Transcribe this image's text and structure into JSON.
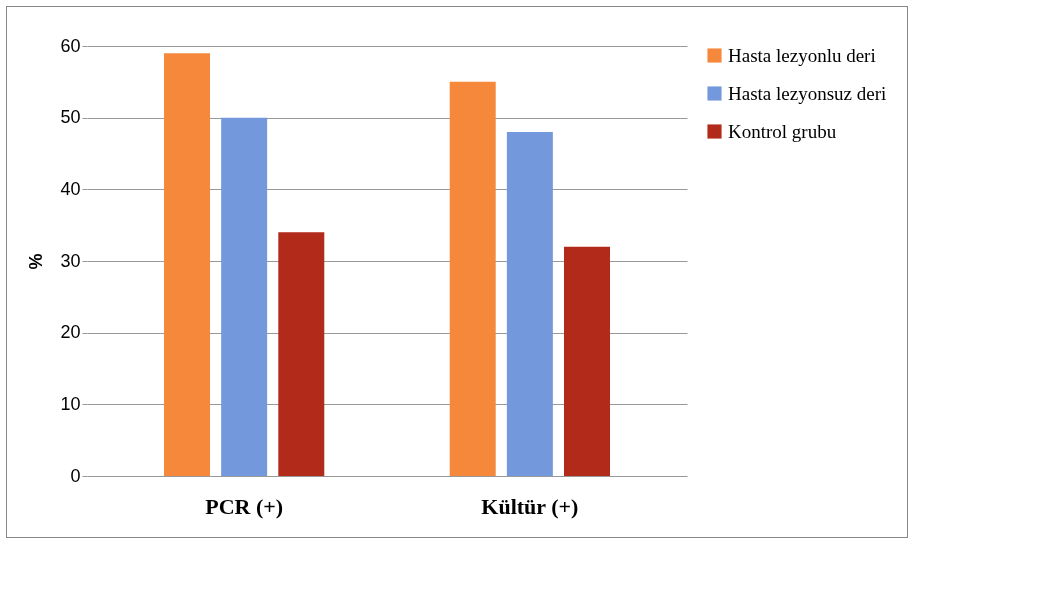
{
  "chart_data": {
    "type": "bar",
    "ylabel": "%",
    "categories": [
      "PCR (+)",
      "Kültür (+)"
    ],
    "series": [
      {
        "name": "Hasta lezyonlu deri",
        "color": "#f5883a",
        "values": [
          59,
          55
        ]
      },
      {
        "name": "Hasta lezyonsuz deri",
        "color": "#7399dc",
        "values": [
          50,
          48
        ]
      },
      {
        "name": "Kontrol grubu",
        "color": "#b22a1a",
        "values": [
          34,
          32
        ]
      }
    ],
    "ylim": [
      0,
      60
    ],
    "yticks": [
      0,
      10,
      20,
      30,
      40,
      50,
      60
    ],
    "grid": "y",
    "legend": "right"
  }
}
